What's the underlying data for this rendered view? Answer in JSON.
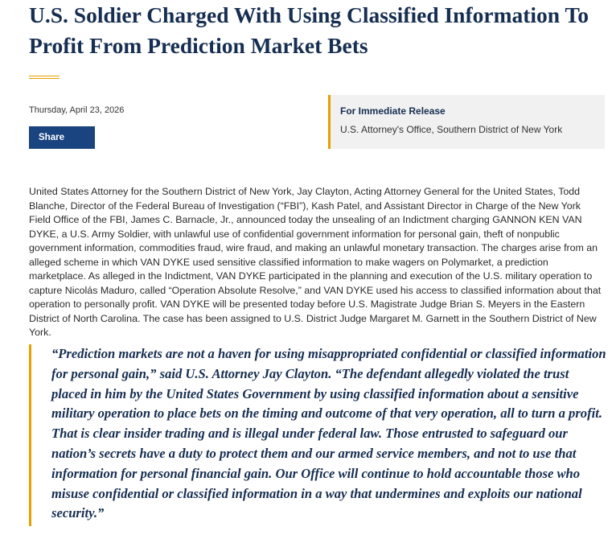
{
  "header": {
    "title": "U.S. Soldier Charged With Using Classified Information To Profit From Prediction Market Bets"
  },
  "meta": {
    "date": "Thursday, April 23, 2026",
    "share": "Share"
  },
  "release": {
    "label": "For Immediate Release",
    "office": "U.S. Attorney's Office, Southern District of New York"
  },
  "body": {
    "paragraph": "United States Attorney for the Southern District of New York, Jay Clayton, Acting Attorney General for the United States, Todd Blanche, Director of the Federal Bureau of Investigation (“FBI”), Kash Patel, and Assistant Director in Charge of the New York Field Office of the FBI, James C. Barnacle, Jr., announced today the unsealing of an Indictment charging GANNON KEN VAN DYKE, a U.S. Army Soldier, with unlawful use of confidential government information for personal gain, theft of nonpublic government information, commodities fraud, wire fraud, and making an unlawful monetary transaction.  The charges arise from an alleged scheme in which VAN DYKE used sensitive classified information to make wagers on Polymarket, a prediction marketplace.  As alleged in the Indictment, VAN DYKE participated in the planning and execution of the U.S. military operation to capture Nicolás Maduro, called “Operation Absolute Resolve,” and VAN DYKE used his access to classified information about that operation to personally profit.  VAN DYKE will be presented today before U.S. Magistrate Judge Brian S. Meyers in the Eastern District of North Carolina.  The case has been assigned to U.S. District Judge Margaret M. Garnett in the Southern District of New York.",
    "quote": "“Prediction markets are not a haven for using misappropriated confidential or classified information for personal gain,” said U.S. Attorney Jay Clayton.  “The defendant allegedly violated the trust placed in him by the United States Government by using classified information about a sensitive military operation to place bets on the timing and outcome of that very operation, all to turn a profit.  That is clear insider trading and is illegal under federal law.  Those entrusted to safeguard our nation’s secrets have a duty to protect them and our armed service members, and not to use that information for personal financial gain.  Our Office will continue to hold accountable those who misuse confidential or classified information in a way that undermines and exploits our national security.”"
  }
}
